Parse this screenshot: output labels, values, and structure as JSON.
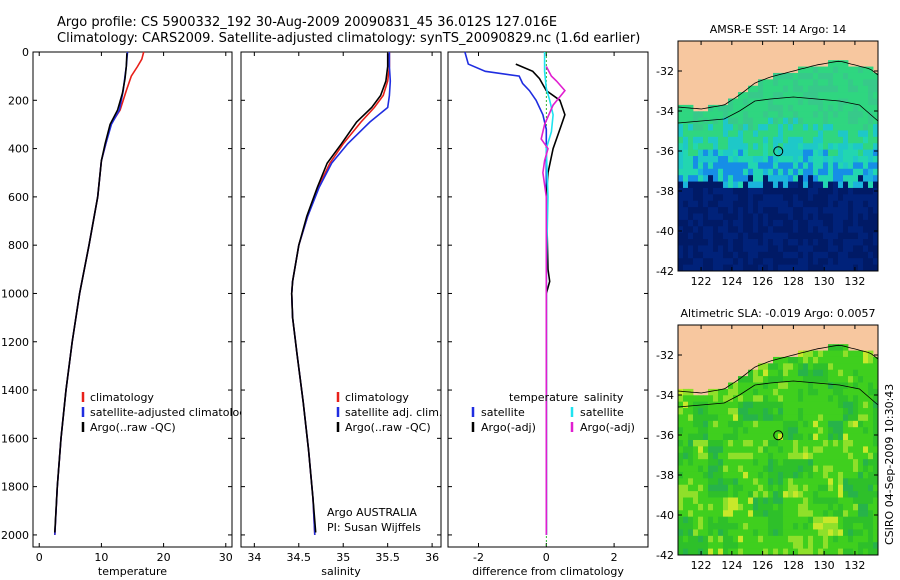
{
  "title": {
    "line1": "Argo profile: CS 5900332_192 30-Aug-2009 20090831_45 36.012S 127.016E",
    "line2": "Climatology: CARS2009. Satellite-adjusted climatology: synTS_20090829.nc (1.6d earlier)"
  },
  "colors": {
    "climatology": "#e8201a",
    "satellite": "#1f2de0",
    "argo": "#000000",
    "sal_satellite": "#1fe3f0",
    "sal_argo": "#e01fd0",
    "land": "#f7c79f",
    "grid_border": "#000000"
  },
  "chart_data": [
    {
      "type": "line",
      "xlabel": "temperature",
      "ylabel": "",
      "xlim": [
        -1,
        31
      ],
      "ylim": [
        2050,
        0
      ],
      "xticks": [
        0,
        10,
        20,
        30
      ],
      "yticks": [
        0,
        200,
        400,
        600,
        800,
        1000,
        1200,
        1400,
        1600,
        1800,
        2000
      ],
      "legend": [
        "climatology",
        "satellite-adjusted climatology",
        "Argo(..raw -QC)"
      ],
      "series": [
        {
          "name": "climatology",
          "color_key": "climatology",
          "points": [
            [
              16.8,
              0
            ],
            [
              16.5,
              30
            ],
            [
              15.8,
              60
            ],
            [
              14.8,
              100
            ],
            [
              14.0,
              160
            ],
            [
              13.0,
              240
            ],
            [
              11.5,
              300
            ],
            [
              10.7,
              380
            ],
            [
              10.0,
              450
            ],
            [
              9.4,
              600
            ],
            [
              8.0,
              800
            ],
            [
              6.5,
              1000
            ],
            [
              5.3,
              1200
            ],
            [
              4.3,
              1400
            ],
            [
              3.5,
              1600
            ],
            [
              2.9,
              1800
            ],
            [
              2.5,
              2000
            ]
          ]
        },
        {
          "name": "satellite-adjusted climatology",
          "color_key": "satellite",
          "points": [
            [
              14.2,
              0
            ],
            [
              14.0,
              60
            ],
            [
              13.8,
              100
            ],
            [
              13.5,
              160
            ],
            [
              12.9,
              240
            ],
            [
              11.6,
              300
            ],
            [
              10.7,
              380
            ],
            [
              10.0,
              450
            ],
            [
              9.4,
              600
            ],
            [
              8.0,
              800
            ],
            [
              6.5,
              1000
            ],
            [
              5.3,
              1200
            ],
            [
              4.3,
              1400
            ],
            [
              3.5,
              1600
            ],
            [
              2.9,
              1800
            ],
            [
              2.5,
              2000
            ]
          ]
        },
        {
          "name": "Argo(..raw -QC)",
          "color_key": "argo",
          "points": [
            [
              14.1,
              5
            ],
            [
              14.0,
              60
            ],
            [
              13.8,
              110
            ],
            [
              13.4,
              170
            ],
            [
              12.6,
              240
            ],
            [
              11.4,
              300
            ],
            [
              10.6,
              380
            ],
            [
              10.0,
              450
            ],
            [
              9.4,
              600
            ],
            [
              8.0,
              800
            ],
            [
              6.5,
              1000
            ],
            [
              5.3,
              1200
            ],
            [
              4.3,
              1400
            ],
            [
              3.5,
              1600
            ],
            [
              2.9,
              1800
            ],
            [
              2.5,
              1990
            ]
          ]
        }
      ]
    },
    {
      "type": "line",
      "xlabel": "salinity",
      "ylabel": "",
      "xlim": [
        33.85,
        36.1
      ],
      "ylim": [
        2050,
        0
      ],
      "xticks": [
        34,
        34.5,
        35,
        35.5,
        36
      ],
      "yticks": [
        0,
        200,
        400,
        600,
        800,
        1000,
        1200,
        1400,
        1600,
        1800,
        2000
      ],
      "legend": [
        "climatology",
        "satellite adj. clim.",
        "Argo(..raw -QC)"
      ],
      "annotations": [
        "Argo AUSTRALIA",
        "PI: Susan Wijffels"
      ],
      "series": [
        {
          "name": "climatology",
          "color_key": "climatology",
          "points": [
            [
              35.52,
              0
            ],
            [
              35.52,
              60
            ],
            [
              35.5,
              120
            ],
            [
              35.45,
              180
            ],
            [
              35.35,
              230
            ],
            [
              35.2,
              290
            ],
            [
              35.0,
              380
            ],
            [
              34.85,
              460
            ],
            [
              34.72,
              560
            ],
            [
              34.6,
              680
            ],
            [
              34.5,
              800
            ],
            [
              34.43,
              950
            ],
            [
              34.42,
              1000
            ],
            [
              34.43,
              1100
            ],
            [
              34.48,
              1250
            ],
            [
              34.55,
              1450
            ],
            [
              34.61,
              1650
            ],
            [
              34.66,
              1850
            ],
            [
              34.68,
              2000
            ]
          ]
        },
        {
          "name": "satellite adj. clim.",
          "color_key": "satellite",
          "points": [
            [
              35.52,
              0
            ],
            [
              35.52,
              60
            ],
            [
              35.53,
              120
            ],
            [
              35.52,
              180
            ],
            [
              35.5,
              230
            ],
            [
              35.3,
              290
            ],
            [
              35.05,
              380
            ],
            [
              34.87,
              460
            ],
            [
              34.73,
              560
            ],
            [
              34.6,
              680
            ],
            [
              34.5,
              800
            ],
            [
              34.43,
              950
            ],
            [
              34.42,
              1000
            ],
            [
              34.43,
              1100
            ],
            [
              34.48,
              1250
            ],
            [
              34.55,
              1450
            ],
            [
              34.61,
              1650
            ],
            [
              34.66,
              1850
            ],
            [
              34.68,
              2000
            ]
          ]
        },
        {
          "name": "Argo(..raw -QC)",
          "color_key": "argo",
          "points": [
            [
              35.5,
              5
            ],
            [
              35.5,
              60
            ],
            [
              35.48,
              120
            ],
            [
              35.42,
              180
            ],
            [
              35.32,
              230
            ],
            [
              35.15,
              290
            ],
            [
              34.98,
              380
            ],
            [
              34.82,
              460
            ],
            [
              34.71,
              560
            ],
            [
              34.59,
              680
            ],
            [
              34.5,
              800
            ],
            [
              34.43,
              950
            ],
            [
              34.42,
              1000
            ],
            [
              34.43,
              1100
            ],
            [
              34.48,
              1250
            ],
            [
              34.55,
              1450
            ],
            [
              34.61,
              1650
            ],
            [
              34.66,
              1850
            ],
            [
              34.69,
              1990
            ]
          ]
        }
      ]
    },
    {
      "type": "line",
      "xlabel": "difference from climatology",
      "ylabel": "",
      "xlim": [
        -2.9,
        3.0
      ],
      "ylim": [
        2050,
        0
      ],
      "xticks": [
        -2,
        0,
        2
      ],
      "yticks": [
        0,
        200,
        400,
        600,
        800,
        1000,
        1200,
        1400,
        1600,
        1800,
        2000
      ],
      "legend_headers": [
        "temperature",
        "salinity"
      ],
      "legend": [
        "satellite",
        "Argo(-adj)",
        "satellite",
        "Argo(-adj)"
      ],
      "series": [
        {
          "name": "satellite",
          "group": "temperature",
          "color_key": "satellite",
          "points": [
            [
              -2.4,
              0
            ],
            [
              -2.3,
              50
            ],
            [
              -1.8,
              80
            ],
            [
              -0.8,
              100
            ],
            [
              -0.7,
              130
            ],
            [
              -0.5,
              160
            ],
            [
              -0.3,
              200
            ],
            [
              -0.1,
              260
            ],
            [
              0,
              320
            ],
            [
              0,
              500
            ],
            [
              0,
              800
            ],
            [
              0,
              1200
            ],
            [
              0,
              1600
            ],
            [
              0,
              2000
            ]
          ]
        },
        {
          "name": "Argo(-adj)",
          "group": "temperature",
          "color_key": "argo",
          "points": [
            [
              -0.9,
              50
            ],
            [
              -0.4,
              80
            ],
            [
              -0.2,
              110
            ],
            [
              0.0,
              160
            ],
            [
              0.4,
              200
            ],
            [
              0.55,
              260
            ],
            [
              0.45,
              300
            ],
            [
              0.2,
              400
            ],
            [
              0.05,
              500
            ],
            [
              0,
              600
            ],
            [
              0.05,
              900
            ],
            [
              0.1,
              950
            ],
            [
              0,
              1000
            ],
            [
              0,
              1400
            ],
            [
              0,
              2000
            ]
          ]
        },
        {
          "name": "satellite",
          "group": "salinity",
          "color_key": "sal_satellite",
          "points": [
            [
              -0.05,
              0
            ],
            [
              -0.05,
              80
            ],
            [
              0,
              150
            ],
            [
              0.1,
              200
            ],
            [
              0.2,
              260
            ],
            [
              0.15,
              330
            ],
            [
              0,
              400
            ],
            [
              0.05,
              600
            ],
            [
              0,
              900
            ],
            [
              0,
              1400
            ],
            [
              0,
              2000
            ]
          ]
        },
        {
          "name": "Argo(-adj)",
          "group": "salinity",
          "color_key": "sal_argo",
          "points": [
            [
              0,
              60
            ],
            [
              0.15,
              100
            ],
            [
              0.3,
              120
            ],
            [
              0.55,
              160
            ],
            [
              0.2,
              220
            ],
            [
              -0.05,
              300
            ],
            [
              -0.15,
              360
            ],
            [
              0.05,
              400
            ],
            [
              -0.05,
              450
            ],
            [
              -0.1,
              500
            ],
            [
              -0.05,
              550
            ],
            [
              0,
              600
            ],
            [
              0,
              800
            ],
            [
              0,
              1200
            ],
            [
              0,
              2000
            ]
          ]
        }
      ]
    }
  ],
  "maps": [
    {
      "title": "AMSR-E SST: 14 Argo: 14",
      "xticks": [
        "122",
        "124",
        "126",
        "128",
        "130",
        "132"
      ],
      "yticks": [
        "-32",
        "-34",
        "-36",
        "-38",
        "-40",
        "-42"
      ],
      "xlim": [
        120.5,
        133.5
      ],
      "ylim": [
        -42,
        -30.5
      ],
      "float_position": [
        127.016,
        -36.012
      ],
      "kind": "sst"
    },
    {
      "title": "Altimetric SLA: -0.019 Argo: 0.0057",
      "xticks": [
        "122",
        "124",
        "126",
        "128",
        "130",
        "132"
      ],
      "yticks": [
        "-32",
        "-34",
        "-36",
        "-38",
        "-40",
        "-42"
      ],
      "xlim": [
        120.5,
        133.5
      ],
      "ylim": [
        -42,
        -30.5
      ],
      "float_position": [
        127.016,
        -36.012
      ],
      "kind": "sla"
    }
  ],
  "footer": {
    "credit": "CSIRO 04-Sep-2009 10:30:43"
  }
}
